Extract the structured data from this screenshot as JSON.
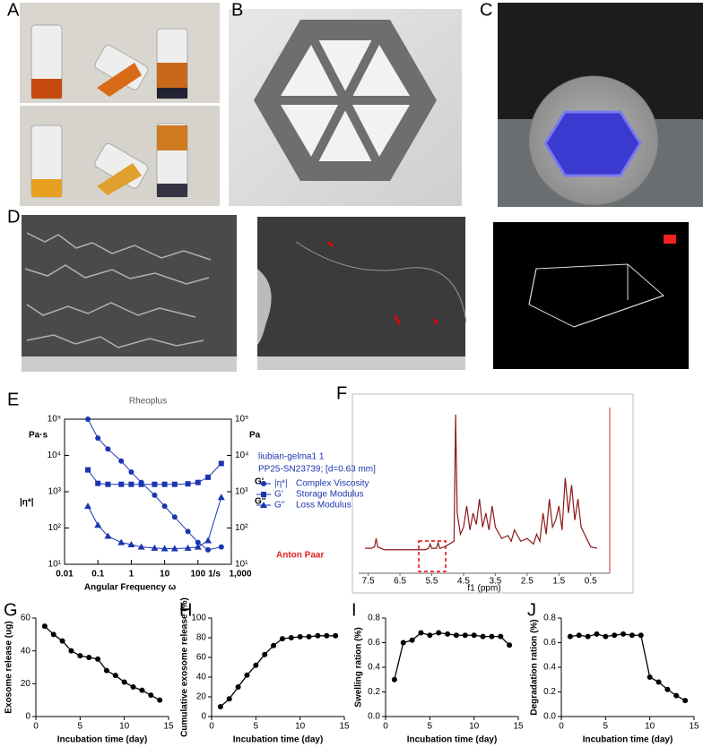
{
  "panel_labels": [
    "A",
    "B",
    "C",
    "D",
    "E",
    "F",
    "G",
    "H",
    "I",
    "J"
  ],
  "chart_data": [
    {
      "type": "line",
      "xlabel": "Incubation time (day)",
      "ylabel": "Exosome release (ug)",
      "x": [
        1,
        2,
        3,
        4,
        5,
        6,
        7,
        8,
        9,
        10,
        11,
        12,
        13,
        14
      ],
      "values": [
        55,
        50,
        46,
        40,
        37,
        36,
        35,
        28,
        25,
        21,
        18,
        16,
        13,
        10
      ],
      "color": "#000000",
      "xlim": [
        0,
        15
      ],
      "xticks": [
        0,
        5,
        10,
        15
      ],
      "ylim": [
        0,
        60
      ],
      "yticks": [
        0,
        20,
        40,
        60
      ]
    },
    {
      "type": "line",
      "xlabel": "Incubation time (day)",
      "ylabel": "Cumulative exosome release (%)",
      "x": [
        1,
        2,
        3,
        4,
        5,
        6,
        7,
        8,
        9,
        10,
        11,
        12,
        13,
        14
      ],
      "values": [
        10,
        18,
        30,
        42,
        52,
        63,
        72,
        79,
        80,
        81,
        81,
        82,
        82,
        82
      ],
      "color": "#000000",
      "xlim": [
        0,
        15
      ],
      "xticks": [
        0,
        5,
        10,
        15
      ],
      "ylim": [
        0,
        100
      ],
      "yticks": [
        0,
        20,
        40,
        60,
        80,
        100
      ]
    },
    {
      "type": "line",
      "xlabel": "Incubation time (day)",
      "ylabel": "Swelling ration (%)",
      "x": [
        1,
        2,
        3,
        4,
        5,
        6,
        7,
        8,
        9,
        10,
        11,
        12,
        13,
        14
      ],
      "values": [
        0.3,
        0.6,
        0.62,
        0.68,
        0.66,
        0.68,
        0.67,
        0.66,
        0.66,
        0.66,
        0.65,
        0.65,
        0.65,
        0.58
      ],
      "color": "#000000",
      "xlim": [
        0,
        15
      ],
      "xticks": [
        0,
        5,
        10,
        15
      ],
      "ylim": [
        0,
        0.8
      ],
      "yticks": [
        {
          "value": 0,
          "label": "0.0"
        },
        0.2,
        0.4,
        0.6,
        0.8
      ]
    },
    {
      "type": "line",
      "xlabel": "Incubation time (day)",
      "ylabel": "Degradation ration (%)",
      "x": [
        1,
        2,
        3,
        4,
        5,
        6,
        7,
        8,
        9,
        10,
        11,
        12,
        13,
        14
      ],
      "values": [
        0.65,
        0.66,
        0.65,
        0.67,
        0.65,
        0.66,
        0.67,
        0.66,
        0.66,
        0.32,
        0.28,
        0.22,
        0.17,
        0.13
      ],
      "color": "#000000",
      "xlim": [
        0,
        15
      ],
      "xticks": [
        0,
        5,
        10,
        15
      ],
      "ylim": [
        0,
        0.8
      ],
      "yticks": [
        {
          "value": 0,
          "label": "0.0"
        },
        0.2,
        0.4,
        0.6,
        0.8
      ]
    },
    {
      "type": "rheology",
      "title": "Rheoplus",
      "xlabel": "Angular Frequency ω",
      "xunit": "1/s",
      "ylabel": "|η*|",
      "yunit": "Pa·s",
      "y2labels": [
        "G'",
        "G''"
      ],
      "y2unit": "Pa",
      "legend_title": [
        "liubian-gelma1 1",
        "PP25-SN23739; [d=0.63 mm]"
      ],
      "brand": "Anton Paar",
      "xscale": "log",
      "yscale": "log",
      "x": [
        0.05,
        0.1,
        0.2,
        0.5,
        1,
        2,
        5,
        10,
        20,
        50,
        100,
        200,
        500
      ],
      "series": [
        {
          "symbol": "|η*|",
          "name": "Complex Viscosity",
          "color": "#1a35b0",
          "marker": "circle",
          "values": [
            100000,
            30000,
            15000,
            7000,
            3500,
            1800,
            800,
            400,
            200,
            80,
            40,
            25,
            30
          ]
        },
        {
          "symbol": "G'",
          "name": "Storage Modulus",
          "color": "#1a35b0",
          "marker": "square",
          "axis": "y2",
          "values": [
            4000,
            1700,
            1600,
            1600,
            1600,
            1600,
            1600,
            1600,
            1600,
            1650,
            1800,
            2500,
            6000
          ]
        },
        {
          "symbol": "G''",
          "name": "Loss Modulus",
          "color": "#1a35b0",
          "marker": "triangle",
          "axis": "y2",
          "values": [
            400,
            120,
            60,
            40,
            35,
            30,
            28,
            27,
            27,
            28,
            30,
            45,
            700
          ]
        }
      ],
      "xlim": [
        0.01,
        1000
      ],
      "xticks": [
        0.01,
        0.1,
        1,
        10,
        100,
        {
          "value": 1000,
          "label": "1,000"
        }
      ],
      "ylim": [
        10,
        100000
      ],
      "yticks": [
        {
          "value": 10,
          "label": "10¹"
        },
        {
          "value": 100,
          "label": "10²"
        },
        {
          "value": 1000,
          "label": "10³"
        },
        {
          "value": 10000,
          "label": "10⁴"
        },
        {
          "value": 100000,
          "label": "10⁵"
        }
      ],
      "y2lim": [
        10,
        100000
      ],
      "y2ticks": [
        {
          "value": 10,
          "label": "10¹"
        },
        {
          "value": 100,
          "label": "10²"
        },
        {
          "value": 1000,
          "label": "10³"
        },
        {
          "value": 10000,
          "label": "10⁴"
        },
        {
          "value": 100000,
          "label": "10⁵"
        }
      ]
    },
    {
      "type": "spectrum",
      "xlabel": "f1 (ppm)",
      "color": "#8b1a1a",
      "x": [
        7.6,
        7.4,
        7.3,
        7.25,
        7.2,
        7.0,
        6.5,
        6.0,
        5.7,
        5.6,
        5.55,
        5.5,
        5.35,
        5.3,
        5.25,
        5.1,
        4.95,
        4.8,
        4.75,
        4.7,
        4.6,
        4.5,
        4.4,
        4.3,
        4.2,
        4.1,
        4.0,
        3.9,
        3.8,
        3.7,
        3.6,
        3.5,
        3.3,
        3.1,
        3.0,
        2.9,
        2.7,
        2.5,
        2.3,
        2.2,
        2.1,
        2.0,
        1.9,
        1.8,
        1.7,
        1.6,
        1.5,
        1.4,
        1.3,
        1.2,
        1.1,
        1.0,
        0.9,
        0.8,
        0.5,
        0.3
      ],
      "values": [
        0.05,
        0.05,
        0.06,
        0.12,
        0.06,
        0.04,
        0.04,
        0.04,
        0.04,
        0.05,
        0.08,
        0.05,
        0.05,
        0.09,
        0.05,
        0.06,
        0.08,
        0.1,
        1.0,
        0.3,
        0.15,
        0.2,
        0.35,
        0.18,
        0.3,
        0.22,
        0.4,
        0.2,
        0.3,
        0.18,
        0.35,
        0.2,
        0.12,
        0.14,
        0.1,
        0.18,
        0.1,
        0.12,
        0.08,
        0.15,
        0.1,
        0.3,
        0.15,
        0.4,
        0.2,
        0.25,
        0.35,
        0.18,
        0.55,
        0.3,
        0.5,
        0.25,
        0.4,
        0.2,
        0.06,
        0.05
      ],
      "xlim": [
        7.8,
        -0.1
      ],
      "xticks": [
        7.5,
        6.5,
        5.5,
        4.5,
        3.5,
        2.5,
        1.5,
        0.5
      ],
      "ylim": [
        0,
        1.05
      ]
    }
  ]
}
